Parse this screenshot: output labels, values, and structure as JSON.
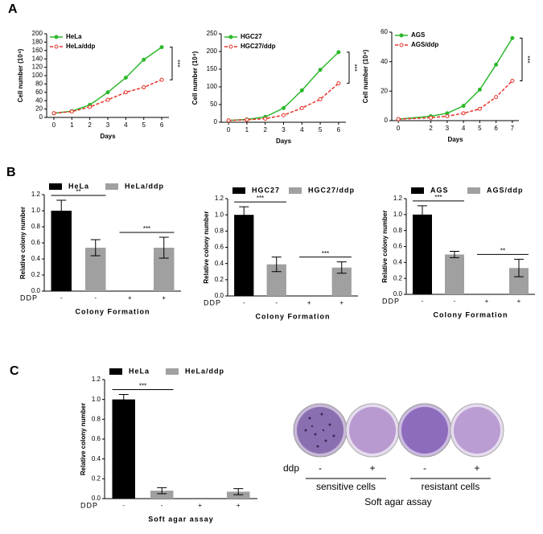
{
  "panel_labels": [
    "A",
    "B",
    "C"
  ],
  "chart_data": [
    {
      "type": "line",
      "xlabel": "Days",
      "ylabel": "Cell number (10⁴)",
      "x": [
        0,
        1,
        2,
        3,
        4,
        5,
        6
      ],
      "xlim": [
        -0.4,
        6.4
      ],
      "xticks": [
        0,
        1,
        2,
        3,
        4,
        5,
        6
      ],
      "ylim": [
        0,
        200
      ],
      "yticks": [
        0,
        20,
        40,
        60,
        80,
        100,
        120,
        140,
        160,
        180,
        200
      ],
      "series": [
        {
          "name": "HeLa",
          "color": "#2db82d",
          "values": [
            10,
            15,
            30,
            60,
            95,
            138,
            168
          ]
        },
        {
          "name": "HeLa/ddp",
          "color": "#e8312a",
          "values": [
            10,
            14,
            25,
            42,
            60,
            72,
            90
          ]
        }
      ],
      "annotation": "***"
    },
    {
      "type": "line",
      "xlabel": "Days",
      "ylabel": "Cell number (10⁴)",
      "x": [
        0,
        1,
        2,
        3,
        4,
        5,
        6
      ],
      "xlim": [
        -0.4,
        6.4
      ],
      "xticks": [
        0,
        1,
        2,
        3,
        4,
        5,
        6
      ],
      "ylim": [
        0,
        250
      ],
      "yticks": [
        0,
        50,
        100,
        150,
        200,
        250
      ],
      "series": [
        {
          "name": "HGC27",
          "color": "#2db82d",
          "values": [
            5,
            8,
            15,
            40,
            90,
            148,
            198
          ]
        },
        {
          "name": "HGC27/ddp",
          "color": "#e8312a",
          "values": [
            5,
            7,
            10,
            20,
            40,
            65,
            110
          ]
        }
      ],
      "annotation": "***"
    },
    {
      "type": "line",
      "xlabel": "Days",
      "ylabel": "Cell number (10⁴)",
      "x": [
        0,
        2,
        3,
        4,
        5,
        6,
        7
      ],
      "xlim": [
        -0.4,
        7.4
      ],
      "xticks": [
        0,
        2,
        3,
        4,
        5,
        6,
        7
      ],
      "ylim": [
        0,
        60
      ],
      "yticks": [
        0,
        20,
        40,
        60
      ],
      "series": [
        {
          "name": "AGS",
          "color": "#2db82d",
          "values": [
            1,
            3,
            5,
            10,
            21,
            38,
            56
          ]
        },
        {
          "name": "AGS/ddp",
          "color": "#e8312a",
          "values": [
            1,
            2,
            3,
            5,
            8,
            16,
            27
          ]
        }
      ],
      "annotation": "***"
    },
    {
      "type": "bar",
      "xlabel": "Colony Formation",
      "ylabel": "Relative colony number",
      "category_label": "DDP",
      "categories": [
        "-",
        "-",
        "+",
        "+"
      ],
      "ylim": [
        0,
        1.2
      ],
      "yticks": [
        {
          "value": 0,
          "label": "0.0"
        },
        0.2,
        0.4,
        0.6,
        0.8,
        {
          "value": 1,
          "label": "1.0"
        },
        1.2
      ],
      "series": [
        {
          "name": "HeLa",
          "color": "#000000",
          "values": [
            1.0,
            null,
            0,
            null
          ],
          "errors": [
            0.13,
            null,
            0,
            null
          ]
        },
        {
          "name": "HeLa/ddp",
          "color": "#a0a0a0",
          "values": [
            null,
            0.54,
            null,
            0.54
          ],
          "errors": [
            null,
            0.1,
            null,
            0.13
          ]
        }
      ],
      "annotations": [
        {
          "text": "**",
          "categories": [
            0,
            1
          ]
        },
        {
          "text": "***",
          "categories": [
            2,
            3
          ]
        }
      ]
    },
    {
      "type": "bar",
      "xlabel": "Colony Formation",
      "ylabel": "Relative colony number",
      "category_label": "DDP",
      "categories": [
        "-",
        "-",
        "+",
        "+"
      ],
      "ylim": [
        0,
        1.2
      ],
      "yticks": [
        {
          "value": 0,
          "label": "0.0"
        },
        0.2,
        0.4,
        0.6,
        0.8,
        {
          "value": 1,
          "label": "1.0"
        },
        1.2
      ],
      "series": [
        {
          "name": "HGC27",
          "color": "#000000",
          "values": [
            1.0,
            null,
            0,
            null
          ],
          "errors": [
            0.1,
            null,
            0,
            null
          ]
        },
        {
          "name": "HGC27/ddp",
          "color": "#a0a0a0",
          "values": [
            null,
            0.39,
            null,
            0.35
          ],
          "errors": [
            null,
            0.09,
            null,
            0.07
          ]
        }
      ],
      "annotations": [
        {
          "text": "***",
          "categories": [
            0,
            1
          ]
        },
        {
          "text": "***",
          "categories": [
            2,
            3
          ]
        }
      ]
    },
    {
      "type": "bar",
      "xlabel": "Colony Formation",
      "ylabel": "Relative colony number",
      "category_label": "DDP",
      "categories": [
        "-",
        "-",
        "+",
        "+"
      ],
      "ylim": [
        0,
        1.2
      ],
      "yticks": [
        {
          "value": 0,
          "label": "0.0"
        },
        0.2,
        0.4,
        0.6,
        0.8,
        {
          "value": 1,
          "label": "1.0"
        },
        1.2
      ],
      "series": [
        {
          "name": "AGS",
          "color": "#000000",
          "values": [
            1.0,
            null,
            0,
            null
          ],
          "errors": [
            0.11,
            null,
            0,
            null
          ]
        },
        {
          "name": "AGS/ddp",
          "color": "#a0a0a0",
          "values": [
            null,
            0.5,
            null,
            0.33
          ],
          "errors": [
            null,
            0.04,
            null,
            0.11
          ]
        }
      ],
      "annotations": [
        {
          "text": "***",
          "categories": [
            0,
            1
          ]
        },
        {
          "text": "**",
          "categories": [
            2,
            3
          ]
        }
      ]
    },
    {
      "type": "bar",
      "xlabel": "Soft agar assay",
      "ylabel": "Relative colony number",
      "category_label": "DDP",
      "categories": [
        "-",
        "-",
        "+",
        "+"
      ],
      "ylim": [
        0,
        1.2
      ],
      "yticks": [
        {
          "value": 0,
          "label": "0.0"
        },
        0.2,
        0.4,
        0.6,
        0.8,
        {
          "value": 1,
          "label": "1.0"
        },
        1.2
      ],
      "series": [
        {
          "name": "HeLa",
          "color": "#000000",
          "values": [
            1.0,
            null,
            0,
            null
          ],
          "errors": [
            0.05,
            null,
            0,
            null
          ]
        },
        {
          "name": "HeLa/ddp",
          "color": "#a0a0a0",
          "values": [
            null,
            0.08,
            null,
            0.07
          ],
          "errors": [
            null,
            0.03,
            null,
            0.03
          ]
        }
      ],
      "annotations": [
        {
          "text": "***",
          "categories": [
            0,
            1
          ]
        }
      ]
    }
  ],
  "photo": {
    "row_label": "ddp",
    "signs": [
      "-",
      "+",
      "-",
      "+"
    ],
    "groups": [
      "sensitive cells",
      "resistant cells"
    ],
    "caption": "Soft agar assay"
  }
}
